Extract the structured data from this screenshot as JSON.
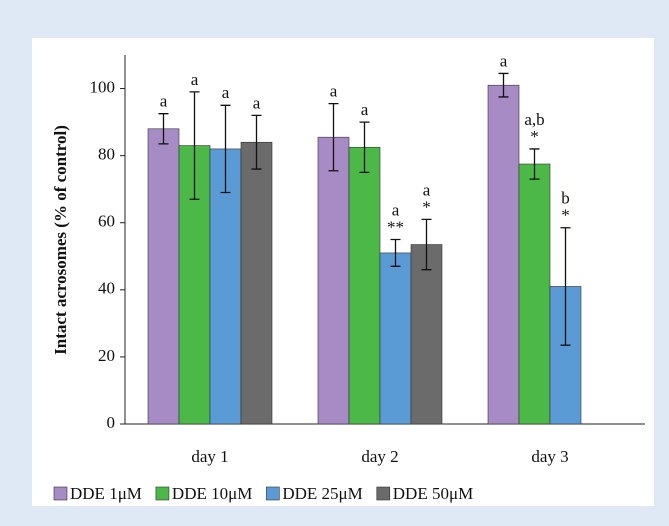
{
  "chart_data": {
    "type": "bar",
    "y_label": "Intact acrosomes (% of control)",
    "categories": [
      "day 1",
      "day 2",
      "day 3"
    ],
    "series": [
      {
        "name": "DDE 1μM",
        "color": "#a68bc4",
        "values": [
          88,
          85.5,
          101
        ],
        "errors": [
          4.5,
          10,
          3.5
        ],
        "annotations": [
          [
            "a"
          ],
          [
            "a"
          ],
          [
            "a"
          ]
        ]
      },
      {
        "name": "DDE 10μM",
        "color": "#4cb847",
        "values": [
          83,
          82.5,
          77.5
        ],
        "errors": [
          16,
          7.5,
          4.5
        ],
        "annotations": [
          [
            "a"
          ],
          [
            "a"
          ],
          [
            "a,b",
            "*"
          ]
        ]
      },
      {
        "name": "DDE 25μM",
        "color": "#5b9bd5",
        "values": [
          82,
          51,
          41
        ],
        "errors": [
          13,
          4,
          17.5
        ],
        "annotations": [
          [
            "a"
          ],
          [
            "a",
            "**"
          ],
          [
            "b",
            "*"
          ]
        ]
      },
      {
        "name": "DDE 50μM",
        "color": "#6b6b6b",
        "values": [
          84,
          53.5,
          null
        ],
        "errors": [
          8,
          7.5,
          null
        ],
        "annotations": [
          [
            "a"
          ],
          [
            "a",
            "*"
          ],
          null
        ]
      }
    ],
    "ylim": [
      0,
      110
    ],
    "yticks": [
      0,
      20,
      40,
      60,
      80,
      100
    ],
    "grid": false
  }
}
